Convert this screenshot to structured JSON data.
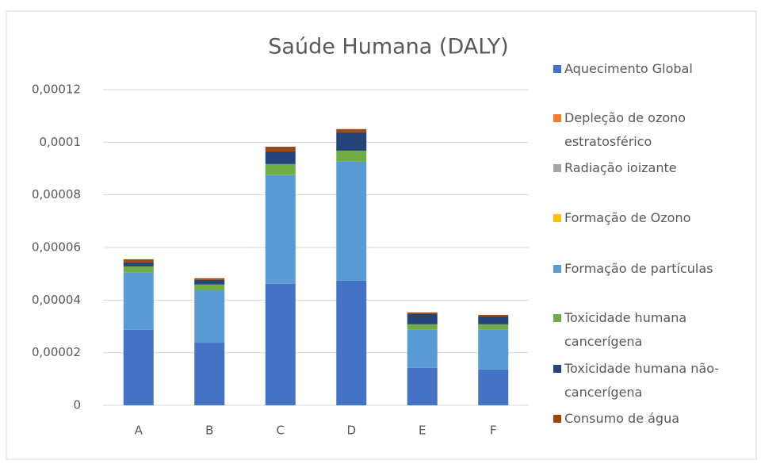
{
  "chart_data": {
    "type": "bar",
    "stacked": true,
    "title": "Saúde Humana (DALY)",
    "categories": [
      "A",
      "B",
      "C",
      "D",
      "E",
      "F"
    ],
    "series": [
      {
        "name": "Aquecimento Global",
        "color": "#4472c4",
        "values": [
          2.87e-05,
          2.38e-05,
          4.62e-05,
          4.74e-05,
          1.42e-05,
          1.36e-05
        ]
      },
      {
        "name": "Depleção de ozono estratosférico",
        "color": "#ed7d31",
        "values": [
          0,
          0,
          0,
          0,
          0,
          0
        ]
      },
      {
        "name": "Radiação ioizante",
        "color": "#a5a5a5",
        "values": [
          0,
          0,
          0,
          0,
          0,
          0
        ]
      },
      {
        "name": "Formação de Ozono",
        "color": "#ffc000",
        "values": [
          0,
          0,
          0,
          0,
          0,
          0
        ]
      },
      {
        "name": "Formação de partículas",
        "color": "#5b9bd5",
        "values": [
          2.17e-05,
          1.99e-05,
          4.13e-05,
          4.52e-05,
          1.45e-05,
          1.51e-05
        ]
      },
      {
        "name": "Toxicidade humana cancerígena",
        "color": "#70ad47",
        "values": [
          2.4e-06,
          2.2e-06,
          4.2e-06,
          4.2e-06,
          2.1e-06,
          2.1e-06
        ]
      },
      {
        "name": "Toxicidade humana não-cancerígena",
        "color": "#264478",
        "values": [
          1.5e-06,
          1.8e-06,
          4.8e-06,
          7e-06,
          3.9e-06,
          3e-06
        ]
      },
      {
        "name": "Consumo de água",
        "color": "#9e480e",
        "values": [
          1.2e-06,
          6e-07,
          1.8e-06,
          1.2e-06,
          6e-07,
          6e-07
        ]
      }
    ],
    "ylim": [
      0,
      0.00012
    ],
    "yticks": [
      {
        "value": 0,
        "label": "0"
      },
      {
        "value": 2e-05,
        "label": "0,00002"
      },
      {
        "value": 4e-05,
        "label": "0,00004"
      },
      {
        "value": 6e-05,
        "label": "0,00006"
      },
      {
        "value": 8e-05,
        "label": "0,00008"
      },
      {
        "value": 0.0001,
        "label": "0,0001"
      },
      {
        "value": 0.00012,
        "label": "0,00012"
      }
    ],
    "grid": true,
    "legend": "right"
  }
}
